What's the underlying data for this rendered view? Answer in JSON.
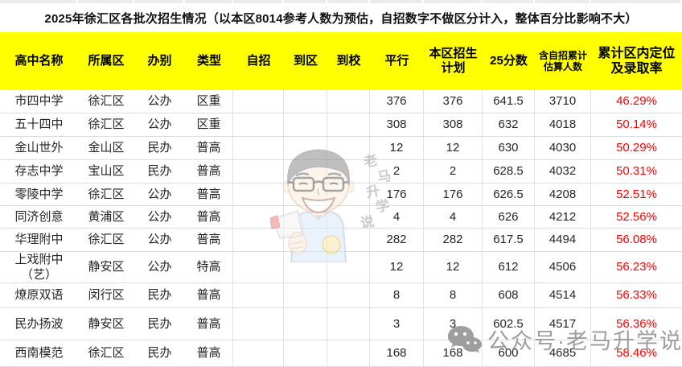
{
  "chart_data": {
    "type": "table",
    "title": "2025年徐汇区各批次招生情况（以本区8014参考人数为预估，自招数字不做区分计入，整体百分比影响不大）",
    "columns": [
      "高中名称",
      "所属区",
      "办别",
      "类型",
      "自招",
      "到区",
      "到校",
      "平行",
      "本区招生\n计划",
      "25分数",
      "含自招累计\n估算人数",
      "累计区内定位\n及录取率"
    ],
    "rows": [
      [
        "市四中学",
        "徐汇区",
        "公办",
        "区重",
        "",
        "",
        "",
        "376",
        "376",
        "641.5",
        "3710",
        "46.29%"
      ],
      [
        "五十四中",
        "徐汇区",
        "公办",
        "区重",
        "",
        "",
        "",
        "308",
        "308",
        "632",
        "4018",
        "50.14%"
      ],
      [
        "金山世外",
        "金山区",
        "民办",
        "普高",
        "",
        "",
        "",
        "12",
        "12",
        "630",
        "4030",
        "50.29%"
      ],
      [
        "存志中学",
        "宝山区",
        "民办",
        "普高",
        "",
        "",
        "",
        "2",
        "2",
        "628.5",
        "4032",
        "50.31%"
      ],
      [
        "零陵中学",
        "徐汇区",
        "公办",
        "普高",
        "",
        "",
        "",
        "176",
        "176",
        "626.5",
        "4208",
        "52.51%"
      ],
      [
        "同济创意",
        "黄浦区",
        "公办",
        "普高",
        "",
        "",
        "",
        "4",
        "4",
        "626",
        "4212",
        "52.56%"
      ],
      [
        "华理附中",
        "徐汇区",
        "公办",
        "普高",
        "",
        "",
        "",
        "282",
        "282",
        "617.5",
        "4494",
        "56.08%"
      ],
      [
        "上戏附中（艺）",
        "静安区",
        "公办",
        "特高",
        "",
        "",
        "",
        "12",
        "12",
        "612",
        "4506",
        "56.23%"
      ],
      [
        "燎原双语",
        "闵行区",
        "民办",
        "普高",
        "",
        "",
        "",
        "8",
        "8",
        "608",
        "4514",
        "56.33%"
      ],
      [
        "民办扬波",
        "静安区",
        "民办",
        "普高",
        "",
        "",
        "",
        "3",
        "3",
        "602.5",
        "4517",
        "56.36%"
      ],
      [
        "西南模范",
        "徐汇区",
        "民办",
        "普高",
        "",
        "",
        "",
        "168",
        "168",
        "600",
        "4685",
        "58.46%"
      ]
    ],
    "layout": {
      "grid": true,
      "header_position": "top"
    }
  },
  "colors": {
    "header_bg": "#FFFF00",
    "rate_text": "#FF0000",
    "grid_line": "#DCDCDC",
    "watermark_gray": "#9E9E9E"
  },
  "watermark": {
    "avatar": "cartoon-man-with-megaphone",
    "vertical_chars": [
      "老",
      "马",
      "升",
      "学",
      "说"
    ],
    "wechat_text": "公众号·老马升学说"
  }
}
